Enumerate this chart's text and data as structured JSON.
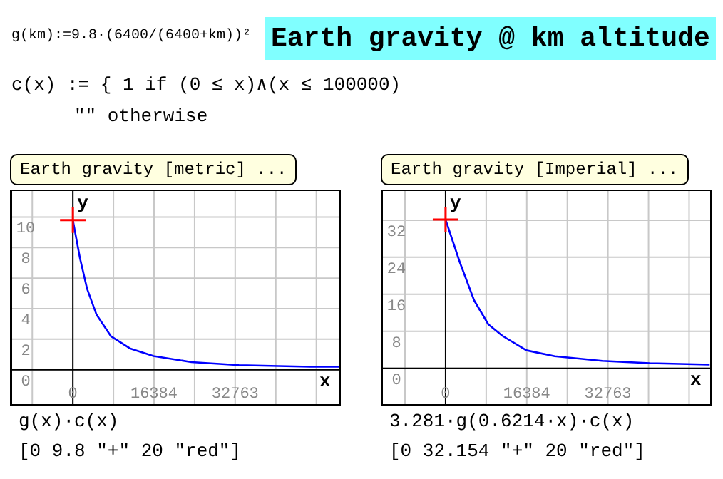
{
  "chart_data": [
    {
      "type": "other",
      "title": "Earth gravity @ km altitude",
      "annotations": [
        "g(km):=9.8·(6400/(6400+km))²",
        "c(x) := { 1   if (0 ≤ x)∧(x ≤ 100000)",
        "\"\"  otherwise"
      ]
    },
    {
      "type": "line",
      "title": "Earth gravity [metric] ...",
      "xlabel": "x",
      "ylabel": "y",
      "grid": true,
      "series": [
        {
          "type": "line",
          "color": "#0000ff",
          "x": [
            0,
            1437,
            2874,
            4791,
            7665,
            11497,
            16288,
            23953,
            33534,
            47906,
            53700
          ],
          "values": [
            9.8,
            7.3,
            5.3,
            3.6,
            2.2,
            1.4,
            0.9,
            0.5,
            0.3,
            0.2,
            0.2
          ]
        },
        {
          "type": "scatter",
          "color": "#ff0000",
          "marker": "cross",
          "x": [
            0
          ],
          "values": [
            9.8
          ]
        }
      ],
      "xlim": [
        -12400,
        53800
      ],
      "xticks": [
        {
          "value": -8192,
          "label": null
        },
        0,
        {
          "value": 8192,
          "label": null
        },
        16384,
        {
          "value": 24576,
          "label": null
        },
        32763,
        {
          "value": 40960,
          "label": null
        },
        {
          "value": 49152,
          "label": null
        }
      ],
      "ylim": [
        -2.3,
        11.7
      ],
      "yticks": [
        0,
        2,
        4,
        6,
        8,
        10
      ],
      "annotations": [
        "g(x)·c(x)",
        "[0 9.8 \"+\" 20 \"red\"]"
      ]
    },
    {
      "type": "line",
      "title": "Earth gravity [Imperial] ...",
      "xlabel": "x",
      "ylabel": "y",
      "grid": true,
      "series": [
        {
          "type": "line",
          "color": "#0000ff",
          "x": [
            0,
            2874,
            5749,
            8623,
            11497,
            16288,
            22037,
            31618,
            41199,
            53300
          ],
          "values": [
            32.1,
            22.9,
            14.7,
            9.5,
            7.0,
            3.9,
            2.6,
            1.6,
            1.1,
            0.8
          ]
        },
        {
          "type": "scatter",
          "color": "#ff0000",
          "marker": "cross",
          "x": [
            0
          ],
          "values": [
            32.154
          ]
        }
      ],
      "xlim": [
        -12800,
        53400
      ],
      "xticks": [
        {
          "value": -8192,
          "label": null
        },
        0,
        {
          "value": 8192,
          "label": null
        },
        16384,
        {
          "value": 24576,
          "label": null
        },
        32763,
        {
          "value": 40960,
          "label": null
        },
        {
          "value": 49152,
          "label": null
        }
      ],
      "ylim": [
        -7.9,
        38.3
      ],
      "yticks": [
        0,
        8,
        16,
        24,
        32
      ],
      "annotations": [
        "3.281·g(0.6214·x)·c(x)",
        "[0 32.154 \"+\" 20 \"red\"]"
      ]
    }
  ]
}
